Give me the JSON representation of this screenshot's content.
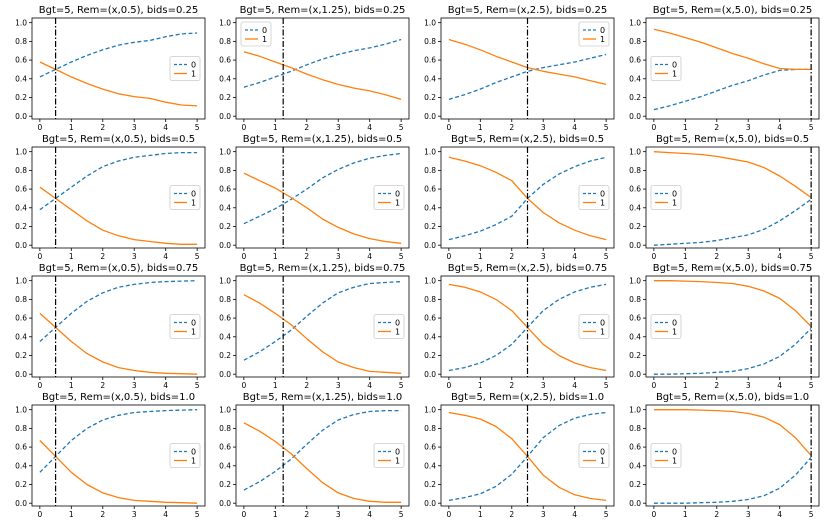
{
  "figure": {
    "name": "bids-probability-grid"
  },
  "colors": {
    "series0": "#1f77b4",
    "series1": "#ff7f0e",
    "vline": "#000000",
    "axis": "#000000",
    "legend_border": "#cccccc"
  },
  "chart_data": {
    "type": "line",
    "x": [
      0,
      0.5,
      1,
      1.5,
      2,
      2.5,
      3,
      3.5,
      4,
      4.5,
      5
    ],
    "xlim": [
      -0.25,
      5.25
    ],
    "ylim": [
      -0.03,
      1.05
    ],
    "xticks": [
      "0",
      "1",
      "2",
      "3",
      "4",
      "5"
    ],
    "yticks": [
      "0.0",
      "0.2",
      "0.4",
      "0.6",
      "0.8",
      "1.0"
    ],
    "legend_labels": [
      "0",
      "1"
    ],
    "panels": [
      {
        "title": "Bgt=5, Rem=(x,0.5), bids=0.25",
        "vline": 0.5,
        "legend": "right",
        "series": [
          {
            "name": "0",
            "style": "dashed",
            "values": [
              0.42,
              0.5,
              0.58,
              0.65,
              0.71,
              0.76,
              0.79,
              0.81,
              0.85,
              0.88,
              0.89
            ]
          },
          {
            "name": "1",
            "style": "solid",
            "values": [
              0.58,
              0.5,
              0.42,
              0.35,
              0.29,
              0.24,
              0.21,
              0.19,
              0.15,
              0.12,
              0.11
            ]
          }
        ]
      },
      {
        "title": "Bgt=5, Rem=(x,1.25), bids=0.25",
        "vline": 1.25,
        "legend": "upper-left",
        "series": [
          {
            "name": "0",
            "style": "dashed",
            "values": [
              0.31,
              0.36,
              0.42,
              0.48,
              0.55,
              0.61,
              0.66,
              0.7,
              0.73,
              0.77,
              0.82
            ]
          },
          {
            "name": "1",
            "style": "solid",
            "values": [
              0.69,
              0.64,
              0.58,
              0.52,
              0.45,
              0.39,
              0.34,
              0.3,
              0.27,
              0.23,
              0.18
            ]
          }
        ]
      },
      {
        "title": "Bgt=5, Rem=(x,2.5), bids=0.25",
        "vline": 2.5,
        "legend": "upper-right",
        "series": [
          {
            "name": "0",
            "style": "dashed",
            "values": [
              0.18,
              0.23,
              0.29,
              0.36,
              0.42,
              0.48,
              0.52,
              0.55,
              0.58,
              0.62,
              0.66
            ]
          },
          {
            "name": "1",
            "style": "solid",
            "values": [
              0.82,
              0.77,
              0.71,
              0.64,
              0.58,
              0.52,
              0.48,
              0.45,
              0.42,
              0.38,
              0.34
            ]
          }
        ]
      },
      {
        "title": "Bgt=5, Rem=(x,5.0), bids=0.25",
        "vline": 5.0,
        "legend": "left",
        "series": [
          {
            "name": "0",
            "style": "dashed",
            "values": [
              0.07,
              0.11,
              0.16,
              0.21,
              0.27,
              0.33,
              0.38,
              0.44,
              0.49,
              0.5,
              0.5
            ]
          },
          {
            "name": "1",
            "style": "solid",
            "values": [
              0.93,
              0.89,
              0.84,
              0.79,
              0.73,
              0.67,
              0.62,
              0.56,
              0.51,
              0.5,
              0.5
            ]
          }
        ]
      },
      {
        "title": "Bgt=5, Rem=(x,0.5), bids=0.5",
        "vline": 0.5,
        "legend": "right",
        "series": [
          {
            "name": "0",
            "style": "dashed",
            "values": [
              0.38,
              0.5,
              0.62,
              0.74,
              0.84,
              0.9,
              0.94,
              0.96,
              0.98,
              0.99,
              0.99
            ]
          },
          {
            "name": "1",
            "style": "solid",
            "values": [
              0.62,
              0.5,
              0.38,
              0.26,
              0.16,
              0.1,
              0.06,
              0.04,
              0.02,
              0.01,
              0.01
            ]
          }
        ]
      },
      {
        "title": "Bgt=5, Rem=(x,1.25), bids=0.5",
        "vline": 1.25,
        "legend": "right",
        "series": [
          {
            "name": "0",
            "style": "dashed",
            "values": [
              0.23,
              0.31,
              0.39,
              0.49,
              0.6,
              0.72,
              0.81,
              0.88,
              0.93,
              0.96,
              0.98
            ]
          },
          {
            "name": "1",
            "style": "solid",
            "values": [
              0.77,
              0.69,
              0.61,
              0.51,
              0.4,
              0.28,
              0.19,
              0.12,
              0.07,
              0.04,
              0.02
            ]
          }
        ]
      },
      {
        "title": "Bgt=5, Rem=(x,2.5), bids=0.5",
        "vline": 2.5,
        "legend": "right",
        "series": [
          {
            "name": "0",
            "style": "dashed",
            "values": [
              0.06,
              0.1,
              0.15,
              0.22,
              0.31,
              0.5,
              0.65,
              0.76,
              0.84,
              0.9,
              0.94
            ]
          },
          {
            "name": "1",
            "style": "solid",
            "values": [
              0.94,
              0.9,
              0.85,
              0.78,
              0.69,
              0.5,
              0.35,
              0.24,
              0.16,
              0.1,
              0.06
            ]
          }
        ]
      },
      {
        "title": "Bgt=5, Rem=(x,5.0), bids=0.5",
        "vline": 5.0,
        "legend": "left",
        "series": [
          {
            "name": "0",
            "style": "dashed",
            "values": [
              0.0,
              0.01,
              0.02,
              0.03,
              0.05,
              0.08,
              0.11,
              0.17,
              0.26,
              0.37,
              0.49
            ]
          },
          {
            "name": "1",
            "style": "solid",
            "values": [
              1.0,
              0.99,
              0.98,
              0.97,
              0.95,
              0.92,
              0.89,
              0.83,
              0.74,
              0.63,
              0.51
            ]
          }
        ]
      },
      {
        "title": "Bgt=5, Rem=(x,0.5), bids=0.75",
        "vline": 0.5,
        "legend": "right",
        "series": [
          {
            "name": "0",
            "style": "dashed",
            "values": [
              0.35,
              0.5,
              0.65,
              0.78,
              0.87,
              0.93,
              0.96,
              0.98,
              0.99,
              0.995,
              1.0
            ]
          },
          {
            "name": "1",
            "style": "solid",
            "values": [
              0.65,
              0.5,
              0.35,
              0.22,
              0.13,
              0.07,
              0.04,
              0.02,
              0.01,
              0.005,
              0.0
            ]
          }
        ]
      },
      {
        "title": "Bgt=5, Rem=(x,1.25), bids=0.75",
        "vline": 1.25,
        "legend": "right",
        "series": [
          {
            "name": "0",
            "style": "dashed",
            "values": [
              0.15,
              0.24,
              0.35,
              0.47,
              0.62,
              0.76,
              0.87,
              0.93,
              0.97,
              0.98,
              0.99
            ]
          },
          {
            "name": "1",
            "style": "solid",
            "values": [
              0.85,
              0.76,
              0.65,
              0.53,
              0.38,
              0.24,
              0.13,
              0.07,
              0.03,
              0.02,
              0.01
            ]
          }
        ]
      },
      {
        "title": "Bgt=5, Rem=(x,2.5), bids=0.75",
        "vline": 2.5,
        "legend": "right",
        "series": [
          {
            "name": "0",
            "style": "dashed",
            "values": [
              0.04,
              0.07,
              0.12,
              0.2,
              0.32,
              0.5,
              0.68,
              0.8,
              0.88,
              0.93,
              0.96
            ]
          },
          {
            "name": "1",
            "style": "solid",
            "values": [
              0.96,
              0.93,
              0.88,
              0.8,
              0.68,
              0.5,
              0.32,
              0.2,
              0.12,
              0.07,
              0.04
            ]
          }
        ]
      },
      {
        "title": "Bgt=5, Rem=(x,5.0), bids=0.75",
        "vline": 5.0,
        "legend": "left",
        "series": [
          {
            "name": "0",
            "style": "dashed",
            "values": [
              0.0,
              0.0,
              0.005,
              0.01,
              0.02,
              0.03,
              0.06,
              0.11,
              0.19,
              0.32,
              0.49
            ]
          },
          {
            "name": "1",
            "style": "solid",
            "values": [
              1.0,
              1.0,
              0.995,
              0.99,
              0.98,
              0.97,
              0.94,
              0.89,
              0.81,
              0.68,
              0.51
            ]
          }
        ]
      },
      {
        "title": "Bgt=5, Rem=(x,0.5), bids=1.0",
        "vline": 0.5,
        "legend": "right",
        "series": [
          {
            "name": "0",
            "style": "dashed",
            "values": [
              0.33,
              0.5,
              0.67,
              0.8,
              0.89,
              0.94,
              0.97,
              0.98,
              0.99,
              0.995,
              1.0
            ]
          },
          {
            "name": "1",
            "style": "solid",
            "values": [
              0.67,
              0.5,
              0.33,
              0.2,
              0.11,
              0.06,
              0.03,
              0.02,
              0.01,
              0.005,
              0.0
            ]
          }
        ]
      },
      {
        "title": "Bgt=5, Rem=(x,1.25), bids=1.0",
        "vline": 1.25,
        "legend": "right",
        "series": [
          {
            "name": "0",
            "style": "dashed",
            "values": [
              0.14,
              0.23,
              0.34,
              0.47,
              0.63,
              0.78,
              0.89,
              0.95,
              0.98,
              0.99,
              0.99
            ]
          },
          {
            "name": "1",
            "style": "solid",
            "values": [
              0.86,
              0.77,
              0.66,
              0.53,
              0.37,
              0.22,
              0.11,
              0.05,
              0.02,
              0.01,
              0.01
            ]
          }
        ]
      },
      {
        "title": "Bgt=5, Rem=(x,2.5), bids=1.0",
        "vline": 2.5,
        "legend": "right",
        "series": [
          {
            "name": "0",
            "style": "dashed",
            "values": [
              0.03,
              0.06,
              0.1,
              0.18,
              0.31,
              0.5,
              0.7,
              0.83,
              0.91,
              0.95,
              0.97
            ]
          },
          {
            "name": "1",
            "style": "solid",
            "values": [
              0.97,
              0.94,
              0.9,
              0.82,
              0.69,
              0.5,
              0.3,
              0.17,
              0.09,
              0.05,
              0.03
            ]
          }
        ]
      },
      {
        "title": "Bgt=5, Rem=(x,5.0), bids=1.0",
        "vline": 5.0,
        "legend": "left",
        "series": [
          {
            "name": "0",
            "style": "dashed",
            "values": [
              0.0,
              0.0,
              0.0,
              0.005,
              0.01,
              0.02,
              0.04,
              0.08,
              0.16,
              0.3,
              0.49
            ]
          },
          {
            "name": "1",
            "style": "solid",
            "values": [
              1.0,
              1.0,
              1.0,
              0.995,
              0.99,
              0.98,
              0.96,
              0.92,
              0.84,
              0.7,
              0.51
            ]
          }
        ]
      }
    ]
  }
}
